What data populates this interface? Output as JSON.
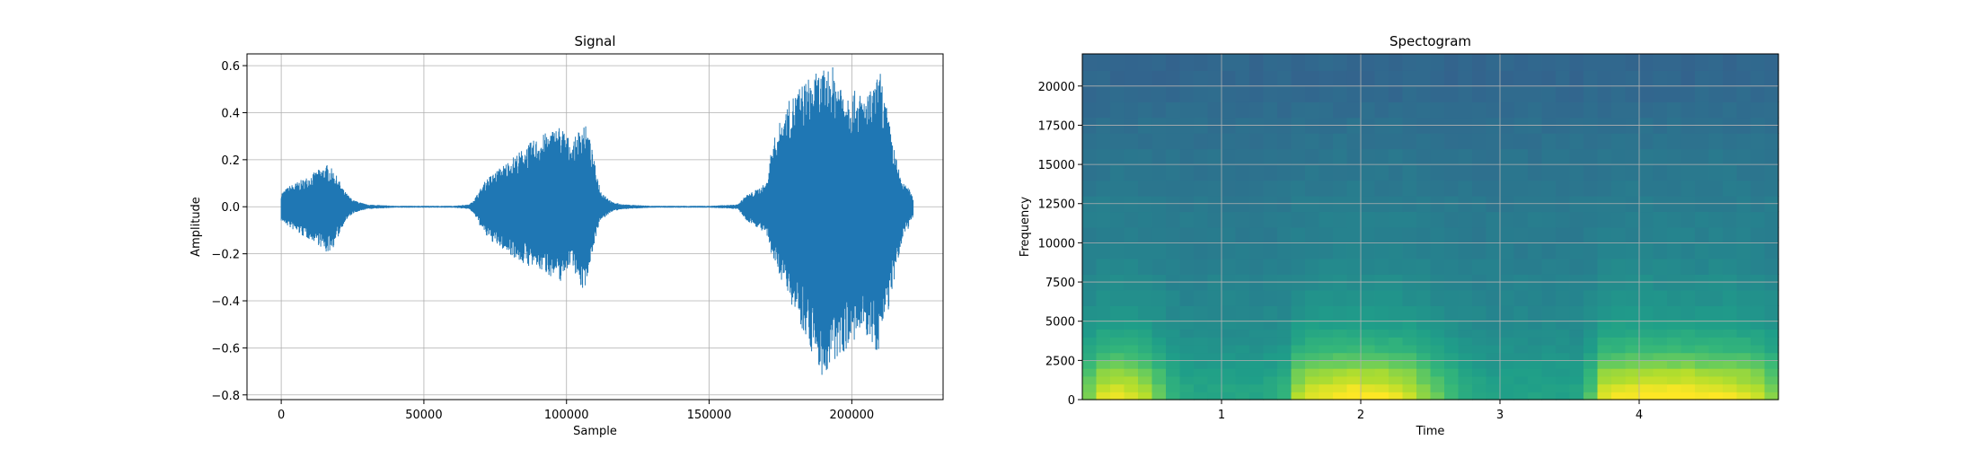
{
  "chart_data": [
    {
      "type": "line",
      "title": "Signal",
      "xlabel": "Sample",
      "ylabel": "Amplitude",
      "xlim": [
        -12000,
        232000
      ],
      "ylim": [
        -0.82,
        0.65
      ],
      "grid": true,
      "color": "#1f77b4",
      "xticks": [
        0,
        50000,
        100000,
        150000,
        200000
      ],
      "xtick_labels": [
        "0",
        "50000",
        "100000",
        "150000",
        "200000"
      ],
      "yticks": [
        -0.8,
        -0.6,
        -0.4,
        -0.2,
        0.0,
        0.2,
        0.4,
        0.6
      ],
      "ytick_labels": [
        "−0.8",
        "−0.6",
        "−0.4",
        "−0.2",
        "0.0",
        "0.2",
        "0.4",
        "0.6"
      ],
      "envelope": {
        "x": [
          0,
          3000,
          8000,
          12000,
          16000,
          18000,
          20000,
          22000,
          25000,
          30000,
          40000,
          60000,
          66000,
          68000,
          70000,
          72000,
          76000,
          80000,
          84000,
          88000,
          92000,
          95000,
          98000,
          100000,
          102000,
          104000,
          106000,
          108000,
          110000,
          112000,
          116000,
          120000,
          130000,
          150000,
          160000,
          163000,
          166000,
          170000,
          172000,
          175000,
          178000,
          182000,
          186000,
          190000,
          193000,
          196000,
          199000,
          202000,
          205000,
          208000,
          210000,
          213000,
          216000,
          218000,
          220000,
          221500
        ],
        "upper": [
          0.06,
          0.09,
          0.12,
          0.15,
          0.18,
          0.16,
          0.12,
          0.07,
          0.03,
          0.01,
          0.004,
          0.004,
          0.01,
          0.04,
          0.08,
          0.12,
          0.16,
          0.2,
          0.24,
          0.28,
          0.31,
          0.33,
          0.35,
          0.31,
          0.27,
          0.32,
          0.37,
          0.3,
          0.18,
          0.07,
          0.02,
          0.01,
          0.004,
          0.004,
          0.01,
          0.05,
          0.07,
          0.1,
          0.26,
          0.37,
          0.45,
          0.52,
          0.56,
          0.58,
          0.6,
          0.55,
          0.5,
          0.49,
          0.47,
          0.52,
          0.58,
          0.37,
          0.18,
          0.1,
          0.08,
          0.04
        ],
        "lower": [
          -0.06,
          -0.09,
          -0.13,
          -0.15,
          -0.2,
          -0.18,
          -0.13,
          -0.07,
          -0.03,
          -0.01,
          -0.004,
          -0.004,
          -0.01,
          -0.04,
          -0.09,
          -0.13,
          -0.17,
          -0.2,
          -0.24,
          -0.26,
          -0.28,
          -0.3,
          -0.32,
          -0.27,
          -0.24,
          -0.32,
          -0.37,
          -0.26,
          -0.14,
          -0.06,
          -0.02,
          -0.01,
          -0.004,
          -0.004,
          -0.01,
          -0.06,
          -0.08,
          -0.12,
          -0.22,
          -0.3,
          -0.39,
          -0.5,
          -0.62,
          -0.74,
          -0.7,
          -0.63,
          -0.6,
          -0.57,
          -0.55,
          -0.63,
          -0.6,
          -0.43,
          -0.27,
          -0.12,
          -0.09,
          -0.04
        ]
      }
    },
    {
      "type": "heatmap",
      "title": "Spectogram",
      "xlabel": "Time",
      "ylabel": "Frequency",
      "xlim": [
        0.0,
        5.0
      ],
      "ylim": [
        0,
        22050
      ],
      "grid": true,
      "colormap": "viridis",
      "xticks": [
        1,
        2,
        3,
        4
      ],
      "xtick_labels": [
        "1",
        "2",
        "3",
        "4"
      ],
      "yticks": [
        0,
        2500,
        5000,
        7500,
        10000,
        12500,
        15000,
        17500,
        20000
      ],
      "ytick_labels": [
        "0",
        "2500",
        "5000",
        "7500",
        "10000",
        "12500",
        "15000",
        "17500",
        "20000"
      ],
      "time_bins": [
        0.05,
        0.15,
        0.25,
        0.35,
        0.45,
        0.55,
        0.65,
        0.75,
        0.85,
        0.95,
        1.05,
        1.15,
        1.25,
        1.35,
        1.45,
        1.55,
        1.65,
        1.75,
        1.85,
        1.95,
        2.05,
        2.15,
        2.25,
        2.35,
        2.45,
        2.55,
        2.65,
        2.75,
        2.85,
        2.95,
        3.05,
        3.15,
        3.25,
        3.35,
        3.45,
        3.55,
        3.65,
        3.75,
        3.85,
        3.95,
        4.05,
        4.15,
        4.25,
        4.35,
        4.45,
        4.55,
        4.65,
        4.75,
        4.85,
        4.95
      ],
      "frequency_bins": [
        250,
        750,
        1250,
        1750,
        2250,
        2750,
        3250,
        3750,
        4250,
        4750,
        5500,
        6500,
        7500,
        8500,
        9500,
        10500,
        11500,
        12500,
        13500,
        14500,
        15500,
        16500,
        17500,
        18500,
        19500,
        20500,
        21500
      ],
      "activity_by_time": [
        0.55,
        0.85,
        0.9,
        0.85,
        0.7,
        0.45,
        0.2,
        0.1,
        0.08,
        0.08,
        0.08,
        0.08,
        0.08,
        0.12,
        0.2,
        0.7,
        0.85,
        0.9,
        0.95,
        1.0,
        0.95,
        0.95,
        0.9,
        0.8,
        0.6,
        0.45,
        0.3,
        0.15,
        0.08,
        0.05,
        0.05,
        0.05,
        0.05,
        0.05,
        0.05,
        0.06,
        0.35,
        0.85,
        0.9,
        0.95,
        1.0,
        1.0,
        1.0,
        1.0,
        0.95,
        0.95,
        0.9,
        0.85,
        0.75,
        0.55
      ],
      "level_by_frequency": [
        0.95,
        0.85,
        0.75,
        0.7,
        0.55,
        0.45,
        0.35,
        0.3,
        0.25,
        0.2,
        0.15,
        0.12,
        0.1,
        0.08,
        0.07,
        0.06,
        0.05,
        0.05,
        0.04,
        0.04,
        0.03,
        0.02,
        0.02,
        0.01,
        0.0,
        0.0,
        0.0
      ],
      "background_by_frequency": [
        0.55,
        0.55,
        0.54,
        0.53,
        0.52,
        0.51,
        0.5,
        0.49,
        0.48,
        0.47,
        0.46,
        0.45,
        0.44,
        0.43,
        0.42,
        0.41,
        0.41,
        0.4,
        0.39,
        0.38,
        0.38,
        0.37,
        0.36,
        0.35,
        0.34,
        0.33,
        0.33
      ]
    }
  ]
}
